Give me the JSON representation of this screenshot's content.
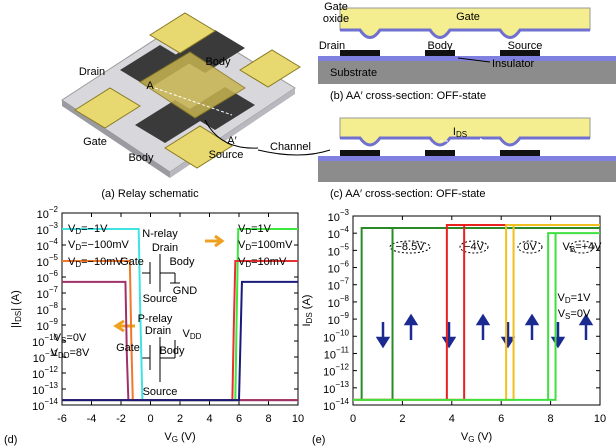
{
  "schematic": {
    "caption": "(a) Relay schematic",
    "labels": [
      "Drain",
      "Body",
      "Gate",
      "Body",
      "Source",
      "A",
      "A′",
      "Channel"
    ]
  },
  "cross_section_b": {
    "caption": "(b) AA′ cross-section: OFF-state",
    "labels": [
      "Gate",
      "Gate",
      "oxide",
      "Drain",
      "Body",
      "Source",
      "Substrate",
      "Insulator"
    ]
  },
  "cross_section_c": {
    "caption": "(c) AA′ cross-section: OFF-state",
    "labels": [
      "IDS"
    ]
  },
  "chart_data": [
    {
      "type": "line",
      "panel": "(d)",
      "xlabel": "VG (V)",
      "ylabel": "|IDS| (A)",
      "log_y": true,
      "xlim": [
        -6,
        10
      ],
      "xticks": [
        -6,
        -4,
        -2,
        0,
        2,
        4,
        6,
        8,
        10
      ],
      "ylim": [
        1e-14,
        0.01
      ],
      "yticks": [
        {
          "value": 1e-14,
          "label": "10−14"
        },
        {
          "value": 1e-13,
          "label": "10−13"
        },
        {
          "value": 1e-12,
          "label": "10−12"
        },
        {
          "value": 1e-11,
          "label": "10−11"
        },
        {
          "value": 1e-10,
          "label": "10−10"
        },
        {
          "value": 1e-09,
          "label": "10−9"
        },
        {
          "value": 1e-08,
          "label": "10−8"
        },
        {
          "value": 1e-07,
          "label": "10−7"
        },
        {
          "value": 1e-06,
          "label": "10−6"
        },
        {
          "value": 1e-05,
          "label": "10−5"
        },
        {
          "value": 0.0001,
          "label": "10−4"
        },
        {
          "value": 0.001,
          "label": "10−3"
        },
        {
          "value": 0.01,
          "label": "10−2"
        }
      ],
      "series": [
        {
          "name": "VD=−1V",
          "color": "#3fe3e3",
          "x": [
            -6,
            -0.8,
            -0.7,
            -0.55,
            10
          ],
          "values": [
            0.001,
            0.001,
            1e-08,
            2e-14,
            2e-14
          ]
        },
        {
          "name": "VD=−100mV",
          "color": "#f07828",
          "x": [
            -6,
            -1.4,
            -1.3,
            -1.2,
            10
          ],
          "values": [
            1e-05,
            1e-05,
            1e-10,
            2e-14,
            2e-14
          ]
        },
        {
          "name": "VD=−10mV",
          "color": "#a0306a",
          "x": [
            -6,
            -1.7,
            -1.6,
            -1.5,
            10
          ],
          "values": [
            5e-07,
            5e-07,
            1e-11,
            2e-14,
            2e-14
          ]
        },
        {
          "name": "VD=1V",
          "color": "#3ce63c",
          "x": [
            -6,
            5.75,
            5.85,
            5.95,
            10
          ],
          "values": [
            2e-14,
            2e-14,
            1e-08,
            0.001,
            0.001
          ]
        },
        {
          "name": "VD=100mV",
          "color": "#e83030",
          "x": [
            -6,
            5.55,
            5.65,
            5.75,
            10
          ],
          "values": [
            2e-14,
            2e-14,
            1e-09,
            1e-05,
            1e-05
          ]
        },
        {
          "name": "VD=10mV",
          "color": "#1a1a7a",
          "x": [
            -6,
            6.0,
            6.1,
            6.2,
            10
          ],
          "values": [
            2e-14,
            2e-14,
            1e-10,
            5e-07,
            5e-07
          ]
        }
      ],
      "annotations": [
        "N-relay",
        "Drain",
        "Gate",
        "Body",
        "Source",
        "GND",
        "P-relay",
        "Drain",
        "VDD",
        "Gate",
        "Body",
        "Source",
        "VS=0V",
        "VDD=8V"
      ]
    },
    {
      "type": "line",
      "panel": "(e)",
      "xlabel": "VG (V)",
      "ylabel": "IDS (A)",
      "log_y": true,
      "xlim": [
        0,
        10
      ],
      "xticks": [
        0,
        2,
        4,
        6,
        8,
        10
      ],
      "ylim": [
        1e-14,
        0.001
      ],
      "yticks": [
        {
          "value": 1e-14,
          "label": "10−14"
        },
        {
          "value": 1e-13,
          "label": "10−13"
        },
        {
          "value": 1e-12,
          "label": "10−12"
        },
        {
          "value": 1e-11,
          "label": "10−11"
        },
        {
          "value": 1e-10,
          "label": "10−10"
        },
        {
          "value": 1e-09,
          "label": "10−9"
        },
        {
          "value": 1e-08,
          "label": "10−8"
        },
        {
          "value": 1e-07,
          "label": "10−7"
        },
        {
          "value": 1e-06,
          "label": "10−6"
        },
        {
          "value": 1e-05,
          "label": "10−5"
        },
        {
          "value": 0.0001,
          "label": "10−4"
        },
        {
          "value": 0.001,
          "label": "10−3"
        }
      ],
      "series": [
        {
          "color": "#2a8a2a",
          "x": [
            0,
            1.6,
            1.6,
            10,
            0.35,
            0.35,
            0
          ],
          "values": [
            2e-14,
            2e-14,
            0.0002,
            0.0002,
            0.0002,
            2e-14,
            2e-14
          ]
        },
        {
          "color": "#e82020",
          "x": [
            0,
            4.5,
            4.5,
            10,
            3.8,
            3.8,
            0
          ],
          "values": [
            2e-14,
            2e-14,
            0.0003,
            0.0003,
            0.0003,
            2e-14,
            2e-14
          ]
        },
        {
          "color": "#f0c020",
          "x": [
            0,
            6.5,
            6.5,
            10,
            6.2,
            6.2,
            0
          ],
          "values": [
            2e-14,
            2e-14,
            0.0003,
            0.0003,
            0.0003,
            2e-14,
            2e-14
          ]
        },
        {
          "color": "#40e040",
          "x": [
            0,
            8.2,
            8.2,
            10,
            7.9,
            7.9,
            0
          ],
          "values": [
            2e-14,
            2e-14,
            0.0001,
            0.0001,
            0.0001,
            2e-14,
            2e-14
          ]
        }
      ],
      "annotations": [
        "−8.5V",
        "−4V",
        "0V",
        "VB=+4V",
        "VD=1V",
        "VS=0V"
      ]
    }
  ]
}
